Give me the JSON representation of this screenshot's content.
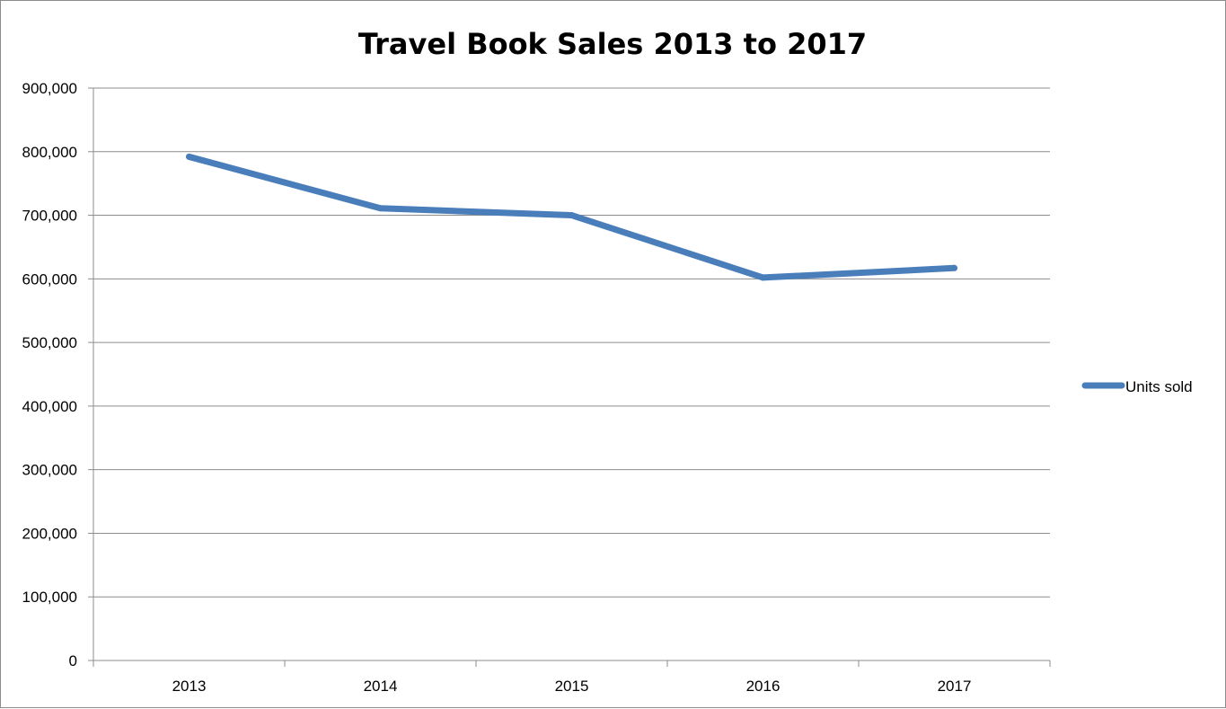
{
  "chart_data": {
    "type": "line",
    "title": "Travel Book Sales 2013 to 2017",
    "categories": [
      "2013",
      "2014",
      "2015",
      "2016",
      "2017"
    ],
    "series": [
      {
        "name": "Units sold",
        "values": [
          792000,
          711000,
          700000,
          602000,
          617000
        ],
        "color": "#4a7ebb"
      }
    ],
    "ylim": [
      0,
      900000
    ],
    "y_ticks": [
      0,
      100000,
      200000,
      300000,
      400000,
      500000,
      600000,
      700000,
      800000,
      900000
    ],
    "y_tick_labels": [
      "0",
      "100,000",
      "200,000",
      "300,000",
      "400,000",
      "500,000",
      "600,000",
      "700,000",
      "800,000",
      "900,000"
    ],
    "grid": true,
    "legend_position": "right"
  }
}
